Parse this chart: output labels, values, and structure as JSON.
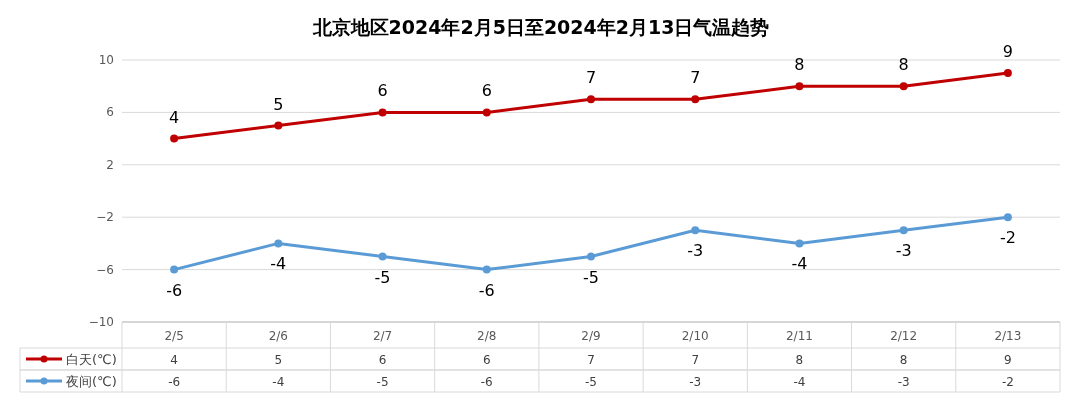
{
  "chart_data": {
    "type": "line",
    "title": "北京地区2024年2月5日至2024年2月13日气温趋势",
    "categories": [
      "2/5",
      "2/6",
      "2/7",
      "2/8",
      "2/9",
      "2/10",
      "2/11",
      "2/12",
      "2/13"
    ],
    "series": [
      {
        "name": "白天(℃)",
        "color": "#c00000",
        "values": [
          4,
          5,
          6,
          6,
          7,
          7,
          8,
          8,
          9
        ]
      },
      {
        "name": "夜间(℃)",
        "color": "#5b9bd5",
        "values": [
          -6,
          -4,
          -5,
          -6,
          -5,
          -3,
          -4,
          -3,
          -2
        ]
      }
    ],
    "annotations": [
      {
        "text": "4",
        "x": "2/5",
        "y": 4
      },
      {
        "text": "5",
        "x": "2/6",
        "y": 5
      },
      {
        "text": "6",
        "x": "2/7",
        "y": 6
      },
      {
        "text": "6",
        "x": "2/8",
        "y": 6
      },
      {
        "text": "7",
        "x": "2/9",
        "y": 7
      },
      {
        "text": "7",
        "x": "2/10",
        "y": 7
      },
      {
        "text": "8",
        "x": "2/11",
        "y": 8
      },
      {
        "text": "8",
        "x": "2/12",
        "y": 8
      },
      {
        "text": "9",
        "x": "2/13",
        "y": 9
      },
      {
        "text": "-6",
        "x": "2/5",
        "y": -6
      },
      {
        "text": "-4",
        "x": "2/6",
        "y": -4
      },
      {
        "text": "-5",
        "x": "2/7",
        "y": -5
      },
      {
        "text": "-6",
        "x": "2/8",
        "y": -6
      },
      {
        "text": "-5",
        "x": "2/9",
        "y": -5
      },
      {
        "text": "-3",
        "x": "2/10",
        "y": -3
      },
      {
        "text": "-4",
        "x": "2/11",
        "y": -4
      },
      {
        "text": "-3",
        "x": "2/12",
        "y": -3
      },
      {
        "text": "-2",
        "x": "2/13",
        "y": -2
      }
    ],
    "ylim": [
      -10,
      10
    ],
    "yticks": [
      -10,
      -6,
      -2,
      2,
      6,
      10
    ],
    "grid": "y",
    "data_labels": true,
    "legend": "bottom",
    "marker": "circle",
    "line_style": "solid"
  }
}
